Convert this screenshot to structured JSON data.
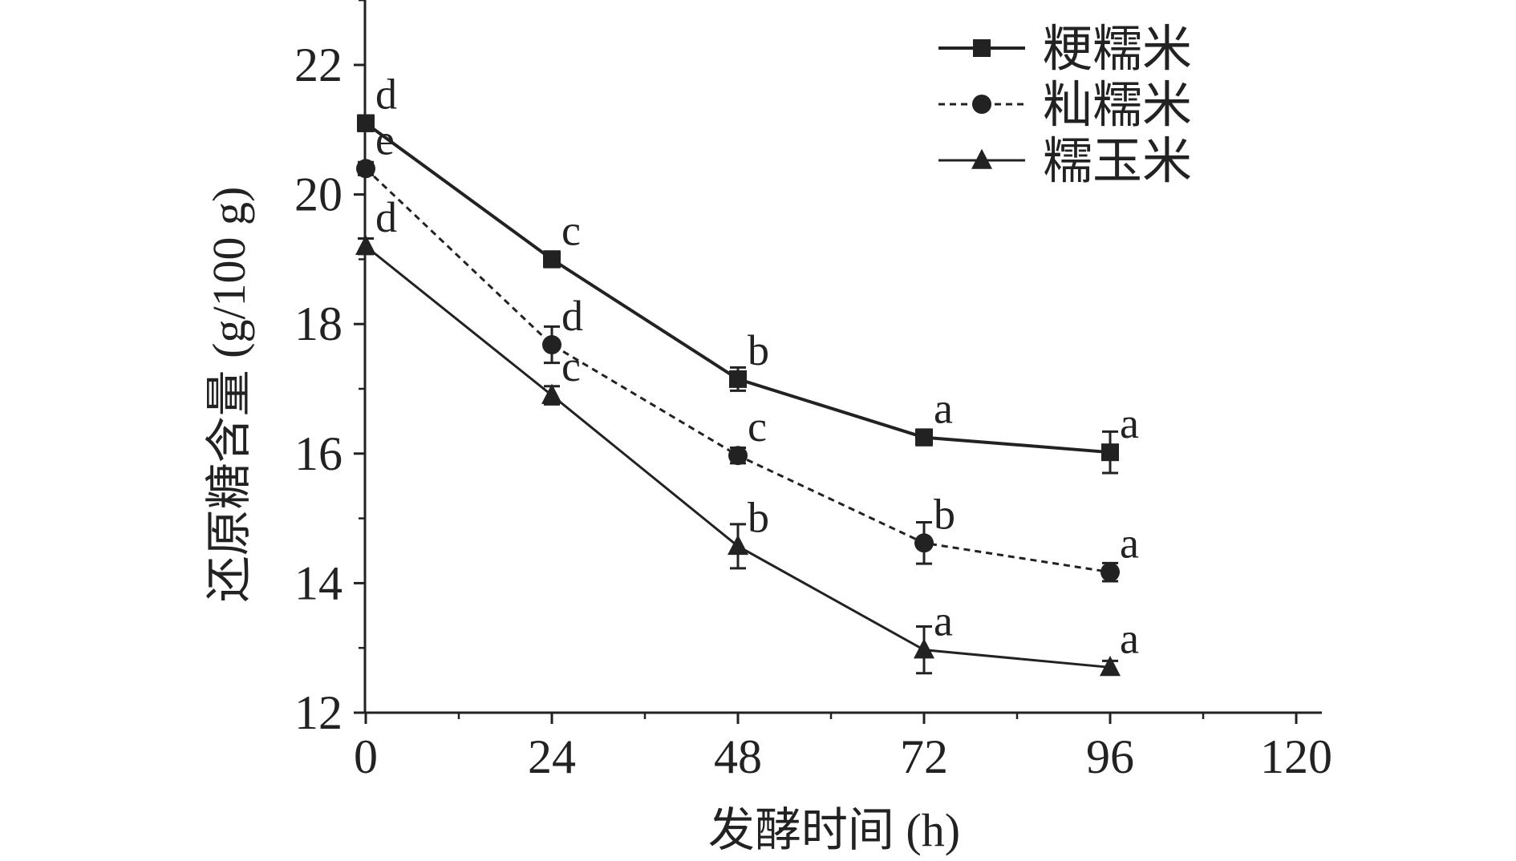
{
  "chart_data": {
    "type": "line",
    "title": "",
    "xlabel": "发酵时间 (h)",
    "ylabel": "还原糖含量 (g/100 g)",
    "x": [
      0,
      24,
      48,
      72,
      96
    ],
    "xlim": [
      0,
      120
    ],
    "ylim": [
      12,
      23
    ],
    "xticks": [
      0,
      24,
      48,
      72,
      96,
      120
    ],
    "yticks": [
      12,
      14,
      16,
      18,
      20,
      22
    ],
    "xtick_labels": [
      "0",
      "24",
      "48",
      "72",
      "96",
      "120"
    ],
    "ytick_labels": [
      "12",
      "14",
      "16",
      "18",
      "20",
      "22"
    ],
    "grid": false,
    "legend_position": "top-right",
    "series": [
      {
        "name": "粳糯米",
        "marker": "square",
        "line_style": "solid",
        "values": [
          21.1,
          19.0,
          17.15,
          16.25,
          16.02
        ],
        "errors": [
          0.12,
          0.12,
          0.18,
          0.12,
          0.32
        ],
        "letters": [
          "d",
          "c",
          "b",
          "a",
          "a"
        ]
      },
      {
        "name": "籼糯米",
        "marker": "circle",
        "line_style": "dashed",
        "values": [
          20.4,
          17.68,
          15.97,
          14.62,
          14.17
        ],
        "errors": [
          0.1,
          0.28,
          0.12,
          0.32,
          0.14
        ],
        "letters": [
          "e",
          "d",
          "c",
          "b",
          "a"
        ]
      },
      {
        "name": "糯玉米",
        "marker": "triangle",
        "line_style": "solid-thin",
        "values": [
          19.2,
          16.9,
          14.57,
          12.97,
          12.7
        ],
        "errors": [
          0.12,
          0.14,
          0.34,
          0.36,
          0.1
        ],
        "letters": [
          "d",
          "c",
          "b",
          "a",
          "a"
        ]
      }
    ],
    "colors": {
      "line": "#222222",
      "background": "#ffffff"
    }
  }
}
